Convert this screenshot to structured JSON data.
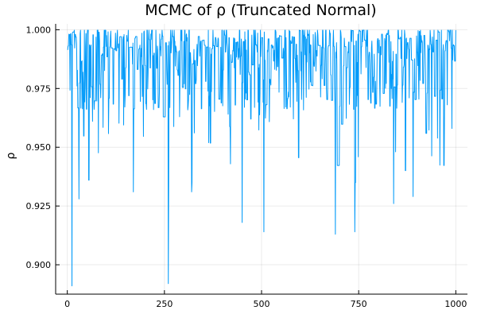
{
  "chart_data": {
    "type": "line",
    "title": "MCMC of ρ (Truncated Normal)",
    "xlabel": "",
    "ylabel": "ρ",
    "xlim": [
      -30,
      1030
    ],
    "ylim": [
      0.8875,
      1.0025
    ],
    "x_ticks": [
      0,
      250,
      500,
      750,
      1000
    ],
    "x_tick_labels": [
      "0",
      "250",
      "500",
      "750",
      "1000"
    ],
    "y_ticks": [
      0.9,
      0.925,
      0.95,
      0.975,
      1.0
    ],
    "y_tick_labels": [
      "0.900",
      "0.925",
      "0.950",
      "0.975",
      "1.000"
    ],
    "grid": true,
    "legend": "none",
    "series": [
      {
        "color": "#009af9",
        "x_start": 1,
        "x_step": 1,
        "n": 1000,
        "typical_range": [
          0.955,
          1.0
        ],
        "mean": 0.982,
        "extremes": [
          {
            "x": 12,
            "y": 0.891
          },
          {
            "x": 260,
            "y": 0.892
          },
          {
            "x": 690,
            "y": 0.913
          },
          {
            "x": 506,
            "y": 0.914
          },
          {
            "x": 740,
            "y": 0.914
          },
          {
            "x": 450,
            "y": 0.918
          },
          {
            "x": 840,
            "y": 0.926
          },
          {
            "x": 30,
            "y": 0.928
          },
          {
            "x": 890,
            "y": 0.929
          },
          {
            "x": 55,
            "y": 0.936
          },
          {
            "x": 170,
            "y": 0.931
          },
          {
            "x": 320,
            "y": 0.931
          },
          {
            "x": 990,
            "y": 0.958
          }
        ]
      }
    ]
  }
}
